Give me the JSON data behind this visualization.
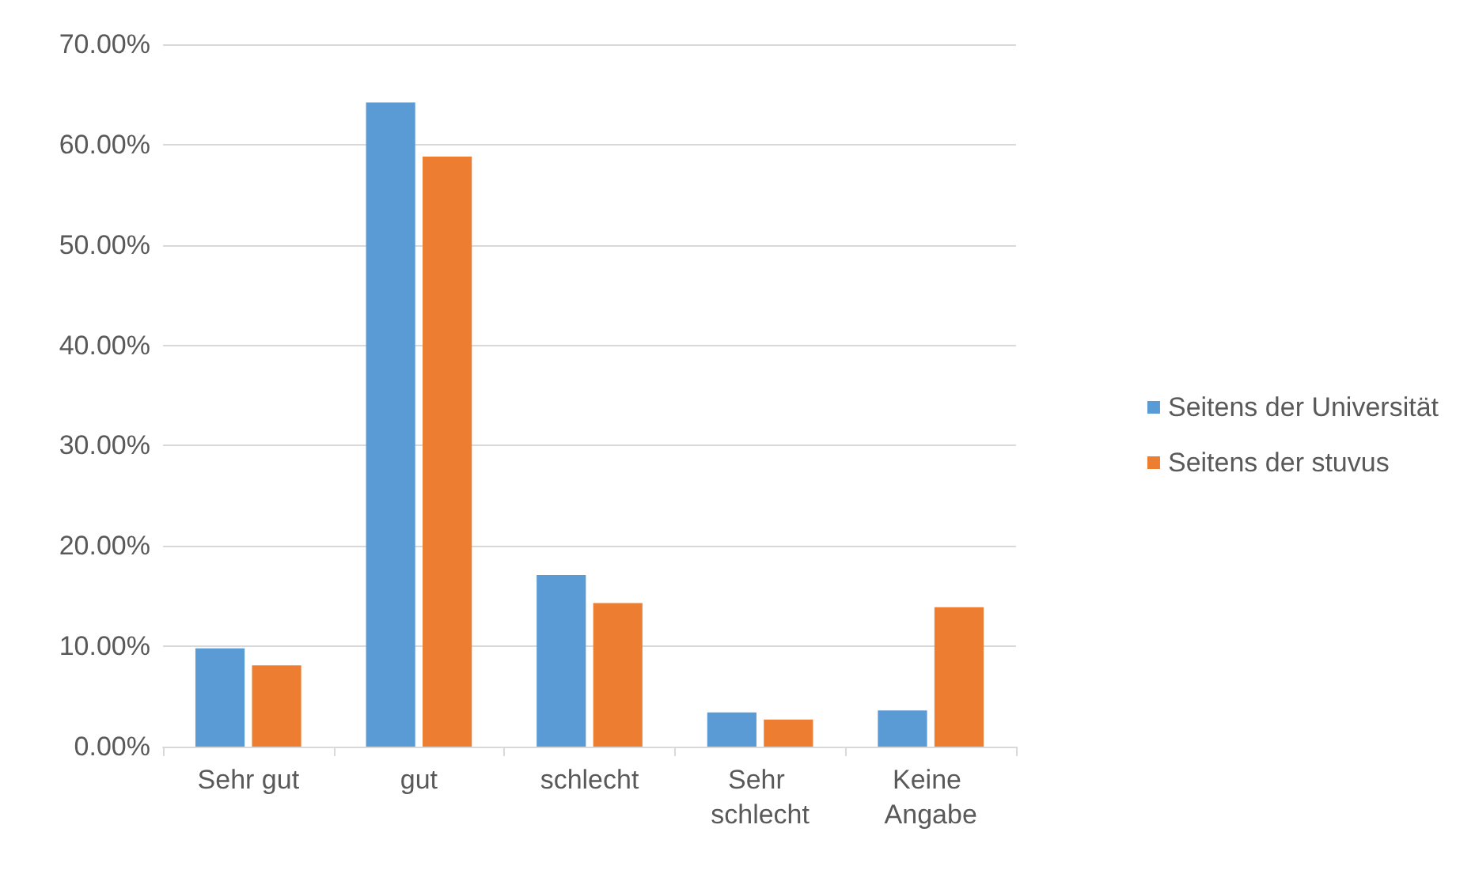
{
  "chart_data": {
    "type": "bar",
    "categories": [
      "Sehr gut",
      "gut",
      "schlecht",
      "Sehr schlecht",
      "Keine Angabe"
    ],
    "series": [
      {
        "name": "Seitens der Universität",
        "color": "#5b9bd5",
        "values": [
          9.8,
          64.2,
          17.1,
          3.4,
          3.6
        ]
      },
      {
        "name": "Seitens der stuvus",
        "color": "#ed7d31",
        "values": [
          8.1,
          58.8,
          14.3,
          2.7,
          13.9
        ]
      }
    ],
    "ylim": [
      0,
      70
    ],
    "yticks": [
      {
        "value": 0,
        "label": "0.00%"
      },
      {
        "value": 10,
        "label": "10.00%"
      },
      {
        "value": 20,
        "label": "20.00%"
      },
      {
        "value": 30,
        "label": "30.00%"
      },
      {
        "value": 40,
        "label": "40.00%"
      },
      {
        "value": 50,
        "label": "50.00%"
      },
      {
        "value": 60,
        "label": "60.00%"
      },
      {
        "value": 70,
        "label": "70.00%"
      }
    ],
    "grid": "y",
    "legend": "right"
  }
}
